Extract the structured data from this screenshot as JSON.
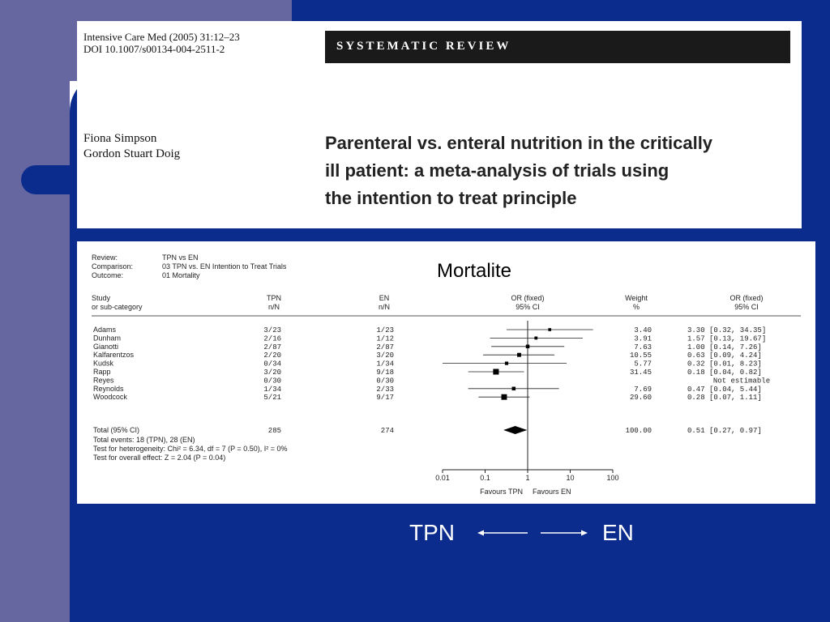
{
  "header": {
    "journal_line1": "Intensive Care Med (2005) 31:12–23",
    "journal_line2": "DOI 10.1007/s00134-004-2511-2",
    "section": "SYSTEMATIC REVIEW",
    "author1": "Fiona Simpson",
    "author2": "Gordon Stuart Doig",
    "title_line1": "Parenteral vs. enteral nutrition in the critically",
    "title_line2": "ill patient: a meta-analysis of trials using",
    "title_line3": "the intention to treat principle"
  },
  "colors": {
    "background": "#0b2c8c",
    "sidebar": "#6666a0",
    "card": "#ffffff"
  },
  "chart_data": {
    "type": "forest",
    "title": "Mortalite",
    "meta": [
      {
        "label": "Review:",
        "value": "TPN vs EN"
      },
      {
        "label": "Comparison:",
        "value": "03 TPN vs. EN Intention to Treat Trials"
      },
      {
        "label": "Outcome:",
        "value": "01 Mortality"
      }
    ],
    "columns": {
      "study": [
        "Study",
        "or sub-category"
      ],
      "tpn": [
        "TPN",
        "n/N"
      ],
      "en": [
        "EN",
        "n/N"
      ],
      "or_plot": [
        "OR (fixed)",
        "95% CI"
      ],
      "weight": [
        "Weight",
        "%"
      ],
      "or_text": [
        "OR (fixed)",
        "95% CI"
      ]
    },
    "studies": [
      {
        "name": "Adams",
        "tpn": "3/23",
        "en": "1/23",
        "weight": "3.40",
        "or_text": "3.30 [0.32, 34.35]",
        "or": 3.3,
        "lo": 0.32,
        "hi": 34.35
      },
      {
        "name": "Dunham",
        "tpn": "2/16",
        "en": "1/12",
        "weight": "3.91",
        "or_text": "1.57 [0.13, 19.67]",
        "or": 1.57,
        "lo": 0.13,
        "hi": 19.67
      },
      {
        "name": "Gianotti",
        "tpn": "2/87",
        "en": "2/87",
        "weight": "7.63",
        "or_text": "1.00 [0.14, 7.26]",
        "or": 1.0,
        "lo": 0.14,
        "hi": 7.26
      },
      {
        "name": "Kalfarentzos",
        "tpn": "2/20",
        "en": "3/20",
        "weight": "10.55",
        "or_text": "0.63 [0.09, 4.24]",
        "or": 0.63,
        "lo": 0.09,
        "hi": 4.24
      },
      {
        "name": "Kudsk",
        "tpn": "0/34",
        "en": "1/34",
        "weight": "5.77",
        "or_text": "0.32 [0.01, 8.23]",
        "or": 0.32,
        "lo": 0.01,
        "hi": 8.23
      },
      {
        "name": "Rapp",
        "tpn": "3/20",
        "en": "9/18",
        "weight": "31.45",
        "or_text": "0.18 [0.04, 0.82]",
        "or": 0.18,
        "lo": 0.04,
        "hi": 0.82
      },
      {
        "name": "Reyes",
        "tpn": "0/30",
        "en": "0/30",
        "weight": "",
        "or_text": "Not estimable",
        "or": null,
        "lo": null,
        "hi": null
      },
      {
        "name": "Reynolds",
        "tpn": "1/34",
        "en": "2/33",
        "weight": "7.69",
        "or_text": "0.47 [0.04, 5.44]",
        "or": 0.47,
        "lo": 0.04,
        "hi": 5.44
      },
      {
        "name": "Woodcock",
        "tpn": "5/21",
        "en": "9/17",
        "weight": "29.60",
        "or_text": "0.28 [0.07, 1.11]",
        "or": 0.28,
        "lo": 0.07,
        "hi": 1.11
      }
    ],
    "total": {
      "name": "Total (95% CI)",
      "tpn": "285",
      "en": "274",
      "weight": "100.00",
      "or_text": "0.51 [0.27, 0.97]",
      "or": 0.51,
      "lo": 0.27,
      "hi": 0.97
    },
    "footer": [
      "Total events: 18 (TPN), 28 (EN)",
      "Test for heterogeneity: Chi² = 6.34, df = 7 (P = 0.50), I² = 0%",
      "Test for overall effect: Z = 2.04 (P = 0.04)"
    ],
    "x_scale": "log",
    "xlim": [
      0.01,
      100
    ],
    "x_ticks": [
      "0.01",
      "0.1",
      "1",
      "10",
      "100"
    ],
    "favours_left": "Favours TPN",
    "favours_right": "Favours EN"
  },
  "arrows": {
    "left": "TPN",
    "right": "EN"
  }
}
